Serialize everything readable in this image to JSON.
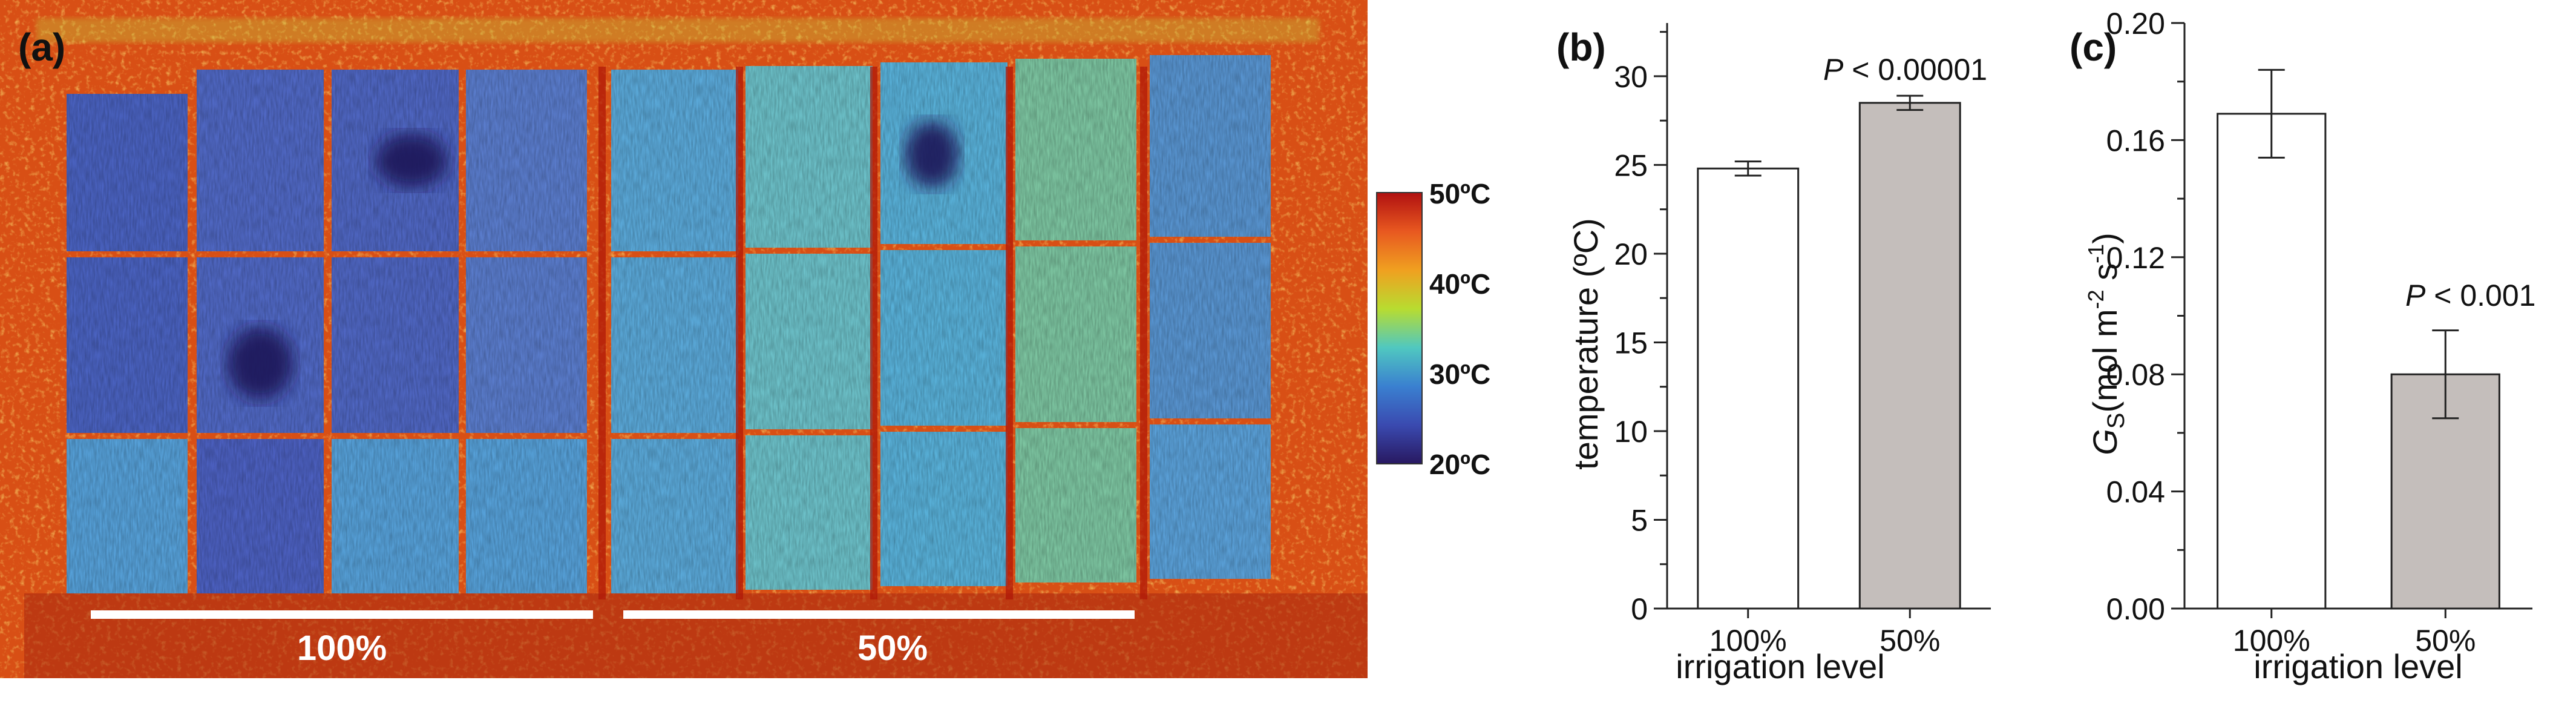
{
  "panel_a": {
    "label": "(a)",
    "colorbar_ticks": [
      "50ºC",
      "40ºC",
      "30ºC",
      "20ºC"
    ],
    "colorbar_colors": [
      "#b01010",
      "#e85820",
      "#f0a020",
      "#b8dc30",
      "#50c8c0",
      "#3a80d0",
      "#3a4ab0",
      "#281860"
    ],
    "groups": [
      {
        "label": "100%",
        "plots": 4
      },
      {
        "label": "50%",
        "plots": 5
      }
    ]
  },
  "chart_data": [
    {
      "panel_label": "(b)",
      "type": "bar",
      "categories": [
        "100%",
        "50%"
      ],
      "values": [
        24.8,
        28.5
      ],
      "errors": [
        0.4,
        0.4
      ],
      "bar_colors": [
        "#ffffff",
        "#c4bebb"
      ],
      "ylim": [
        0,
        33
      ],
      "yticks": [
        "0",
        "5",
        "10",
        "15",
        "20",
        "25",
        "30"
      ],
      "ylabel": "temperature (ºC)",
      "xlabel": "irrigation level",
      "annotation": {
        "prefix": "P",
        "text": " < 0.00001"
      }
    },
    {
      "panel_label": "(c)",
      "type": "bar",
      "categories": [
        "100%",
        "50%"
      ],
      "values": [
        0.169,
        0.08
      ],
      "errors": [
        0.015,
        0.015
      ],
      "bar_colors": [
        "#ffffff",
        "#c4bebb"
      ],
      "ylim": [
        0,
        0.2
      ],
      "yticks": [
        "0.00",
        "0.04",
        "0.08",
        "0.12",
        "0.16",
        "0.20"
      ],
      "ylabel": {
        "symbol": "G",
        "subscript": "S",
        "units": "(mol m",
        "exp1": "-2",
        "mid": " s",
        "exp2": "-1",
        "close": ")"
      },
      "xlabel": "irrigation level",
      "annotation": {
        "prefix": "P",
        "text": " < 0.001"
      }
    }
  ]
}
